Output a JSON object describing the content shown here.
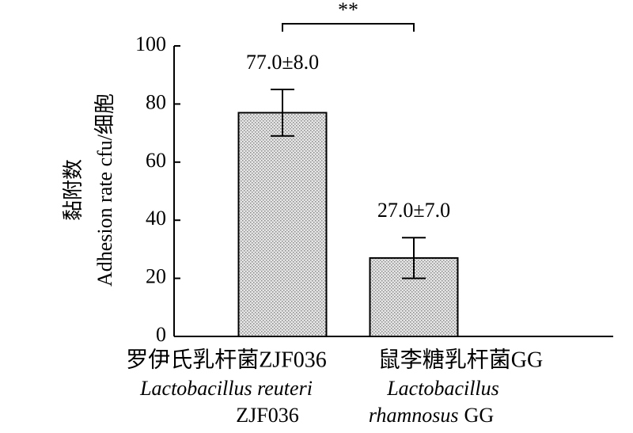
{
  "chart_data": {
    "type": "bar",
    "categories": [
      "罗伊氏乳杆菌ZJF036",
      "鼠李糖乳杆菌GG"
    ],
    "latin_labels": [
      [
        [
          {
            "text": "Lactobacillus reuteri",
            "italic": true
          }
        ],
        [
          {
            "text": "ZJF036",
            "italic": false
          }
        ]
      ],
      [
        [
          {
            "text": "Lactobacillus",
            "italic": true
          }
        ],
        [
          {
            "text": "rhamnosus",
            "italic": true
          },
          {
            "text": "GG",
            "italic": false
          }
        ]
      ]
    ],
    "values": [
      77.0,
      27.0
    ],
    "errors": [
      8.0,
      7.0
    ],
    "value_labels": [
      "77.0±8.0",
      "27.0±7.0"
    ],
    "color": "#d4d4d4",
    "ylabel": [
      "黏附数",
      "Adhesion rate cfu/细胞"
    ],
    "significance": "**",
    "ylim": [
      0,
      100
    ],
    "yticks": [
      0,
      20,
      40,
      60,
      80,
      100
    ]
  }
}
